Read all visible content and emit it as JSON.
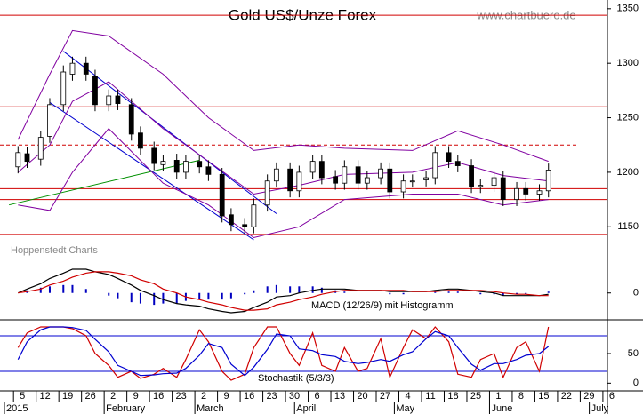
{
  "chart_data": [
    {
      "type": "candlestick",
      "title": "Gold US$/Unze Forex",
      "source": "www.chartbuero.de",
      "credit": "Hoppenstedt Charts",
      "xlim": [
        "2015-01-01",
        "2015-07-07"
      ],
      "x": [
        "2015-01-06",
        "2015-01-08",
        "2015-01-13",
        "2015-01-15",
        "2015-01-20",
        "2015-01-22",
        "2015-01-27",
        "2015-01-29",
        "2015-02-03",
        "2015-02-05",
        "2015-02-10",
        "2015-02-12",
        "2015-02-17",
        "2015-02-19",
        "2015-02-24",
        "2015-02-26",
        "2015-03-03",
        "2015-03-05",
        "2015-03-10",
        "2015-03-12",
        "2015-03-17",
        "2015-03-19",
        "2015-03-24",
        "2015-03-26",
        "2015-03-31",
        "2015-04-02",
        "2015-04-07",
        "2015-04-09",
        "2015-04-14",
        "2015-04-16",
        "2015-04-21",
        "2015-04-23",
        "2015-04-28",
        "2015-04-30",
        "2015-05-05",
        "2015-05-07",
        "2015-05-12",
        "2015-05-14",
        "2015-05-19",
        "2015-05-21",
        "2015-05-26",
        "2015-05-28",
        "2015-06-02",
        "2015-06-04",
        "2015-06-09",
        "2015-06-11",
        "2015-06-16",
        "2015-06-18"
      ],
      "open": [
        1205,
        1217,
        1212,
        1233,
        1262,
        1290,
        1300,
        1288,
        1262,
        1270,
        1262,
        1236,
        1222,
        1207,
        1211,
        1200,
        1210,
        1205,
        1198,
        1161,
        1152,
        1150,
        1170,
        1192,
        1203,
        1183,
        1200,
        1210,
        1196,
        1190,
        1205,
        1190,
        1195,
        1203,
        1182,
        1192,
        1193,
        1195,
        1218,
        1210,
        1206,
        1187,
        1188,
        1195,
        1175,
        1185,
        1180,
        1183
      ],
      "high": [
        1224,
        1223,
        1238,
        1268,
        1298,
        1306,
        1306,
        1294,
        1276,
        1276,
        1268,
        1242,
        1228,
        1216,
        1217,
        1216,
        1216,
        1211,
        1204,
        1167,
        1158,
        1176,
        1198,
        1209,
        1209,
        1206,
        1216,
        1216,
        1202,
        1211,
        1211,
        1201,
        1209,
        1209,
        1198,
        1198,
        1201,
        1224,
        1224,
        1216,
        1212,
        1194,
        1201,
        1201,
        1191,
        1191,
        1189,
        1208
      ],
      "low": [
        1199,
        1204,
        1206,
        1227,
        1256,
        1284,
        1284,
        1256,
        1256,
        1257,
        1229,
        1216,
        1202,
        1201,
        1194,
        1194,
        1199,
        1192,
        1154,
        1146,
        1144,
        1144,
        1164,
        1186,
        1177,
        1177,
        1194,
        1189,
        1184,
        1184,
        1184,
        1184,
        1189,
        1176,
        1176,
        1186,
        1187,
        1189,
        1204,
        1200,
        1181,
        1181,
        1182,
        1169,
        1169,
        1174,
        1174,
        1177
      ],
      "close": [
        1218,
        1210,
        1232,
        1262,
        1292,
        1300,
        1290,
        1262,
        1270,
        1263,
        1235,
        1222,
        1208,
        1210,
        1200,
        1210,
        1205,
        1198,
        1160,
        1152,
        1150,
        1170,
        1192,
        1203,
        1183,
        1200,
        1210,
        1195,
        1190,
        1205,
        1190,
        1195,
        1203,
        1182,
        1192,
        1192,
        1195,
        1218,
        1210,
        1206,
        1187,
        1188,
        1195,
        1175,
        1185,
        1180,
        1183,
        1202
      ],
      "band_x": [
        "2015-01-06",
        "2015-01-15",
        "2015-01-22",
        "2015-02-03",
        "2015-02-19",
        "2015-03-05",
        "2015-03-19",
        "2015-04-02",
        "2015-04-16",
        "2015-05-07",
        "2015-05-21",
        "2015-06-04",
        "2015-06-18"
      ],
      "bands": [
        {
          "color": "#8000a0",
          "values": [
            1230,
            1290,
            1330,
            1325,
            1290,
            1250,
            1220,
            1225,
            1222,
            1220,
            1238,
            1225,
            1210
          ]
        },
        {
          "color": "#8000a0",
          "values": [
            1200,
            1225,
            1265,
            1283,
            1240,
            1210,
            1180,
            1188,
            1198,
            1200,
            1209,
            1197,
            1192
          ]
        },
        {
          "color": "#8000a0",
          "values": [
            1170,
            1165,
            1200,
            1240,
            1190,
            1170,
            1140,
            1150,
            1175,
            1180,
            1180,
            1170,
            1175
          ]
        }
      ],
      "levels": [
        {
          "value": 1344,
          "color": "#d00000",
          "dashed": false
        },
        {
          "value": 1260,
          "color": "#d00000",
          "dashed": false
        },
        {
          "value": 1225,
          "color": "#d00000",
          "dashed": true
        },
        {
          "value": 1185,
          "color": "#d00000",
          "dashed": false
        },
        {
          "value": 1175,
          "color": "#d00000",
          "dashed": false
        },
        {
          "value": 1143,
          "color": "#d00000",
          "dashed": false
        }
      ],
      "trendlines": [
        {
          "color": "#0000d0",
          "x": [
            "2015-01-20",
            "2015-03-26"
          ],
          "values": [
            1311,
            1162
          ]
        },
        {
          "color": "#0000d0",
          "x": [
            "2015-01-15",
            "2015-03-19"
          ],
          "values": [
            1264,
            1138
          ]
        },
        {
          "color": "#009000",
          "x": [
            "2015-01-02",
            "2015-03-03"
          ],
          "values": [
            1170,
            1211
          ]
        }
      ],
      "ylim": [
        1138,
        1358
      ],
      "yticks": [
        1150,
        1200,
        1250,
        1300,
        1350
      ]
    },
    {
      "type": "macd",
      "label": "MACD (12/26/9) mit Histogramm",
      "series": [
        {
          "name": "MACD",
          "color": "#000000",
          "values": [
            0,
            3,
            7,
            11,
            15,
            18,
            18,
            16,
            14,
            11,
            6,
            2,
            -2,
            -5,
            -8,
            -9,
            -10,
            -12,
            -14,
            -15,
            -14,
            -11,
            -7,
            -3,
            -2,
            0,
            2,
            3,
            3,
            3,
            2,
            2,
            2,
            1,
            1,
            1,
            1,
            2,
            3,
            3,
            2,
            1,
            0,
            -2,
            -2,
            -2,
            -2,
            -1
          ]
        },
        {
          "name": "Signal",
          "color": "#d00000",
          "values": [
            0,
            1,
            3,
            6,
            9,
            12,
            15,
            16,
            16,
            15,
            13,
            10,
            7,
            3,
            0,
            -3,
            -5,
            -7,
            -9,
            -11,
            -13,
            -13,
            -12,
            -9,
            -7,
            -5,
            -3,
            -1,
            1,
            2,
            2,
            2,
            2,
            2,
            2,
            1,
            1,
            1,
            2,
            2,
            2,
            2,
            1,
            0,
            -1,
            -1,
            -2,
            -2
          ]
        }
      ],
      "histogram": {
        "color": "#0000c0",
        "values": [
          0,
          2,
          4,
          5,
          6,
          6,
          3,
          0,
          -2,
          -4,
          -7,
          -8,
          -9,
          -8,
          -8,
          -6,
          -5,
          -5,
          -5,
          -4,
          -1,
          2,
          5,
          6,
          5,
          5,
          5,
          4,
          2,
          1,
          0,
          0,
          0,
          -1,
          -1,
          0,
          0,
          1,
          1,
          1,
          0,
          -1,
          -1,
          -2,
          -1,
          -1,
          0,
          1
        ]
      },
      "ylim": [
        -17,
        20
      ],
      "yticks": [
        0
      ]
    },
    {
      "type": "stochastic",
      "label": "Stochastik (5/3/3)",
      "series": [
        {
          "name": "%K",
          "color": "#d00000",
          "values": [
            60,
            85,
            95,
            95,
            95,
            92,
            80,
            50,
            30,
            10,
            20,
            8,
            15,
            25,
            10,
            40,
            90,
            70,
            20,
            5,
            15,
            60,
            95,
            95,
            50,
            30,
            85,
            30,
            20,
            60,
            20,
            25,
            75,
            10,
            60,
            90,
            75,
            95,
            70,
            15,
            10,
            40,
            50,
            10,
            60,
            70,
            20,
            95
          ]
        },
        {
          "name": "%D",
          "color": "#0000d0",
          "values": [
            40,
            70,
            90,
            95,
            95,
            94,
            89,
            74,
            53,
            30,
            20,
            13,
            14,
            16,
            17,
            25,
            47,
            67,
            60,
            32,
            13,
            27,
            57,
            83,
            80,
            58,
            55,
            48,
            45,
            37,
            33,
            35,
            40,
            37,
            48,
            53,
            75,
            87,
            80,
            60,
            32,
            22,
            33,
            33,
            40,
            47,
            50,
            62
          ]
        }
      ],
      "levels": [
        {
          "value": 20,
          "color": "#0000d0"
        },
        {
          "value": 80,
          "color": "#0000d0"
        }
      ],
      "ylim": [
        -13,
        107
      ],
      "yticks": [
        0,
        50
      ],
      "xticks": [
        {
          "value": "2015-01-05",
          "label": "5"
        },
        {
          "value": "2015-01-12",
          "label": "12"
        },
        {
          "value": "2015-01-19",
          "label": "19"
        },
        {
          "value": "2015-01-26",
          "label": "26"
        },
        {
          "value": "2015-02-02",
          "label": "2"
        },
        {
          "value": "2015-02-09",
          "label": "9"
        },
        {
          "value": "2015-02-16",
          "label": "16"
        },
        {
          "value": "2015-02-23",
          "label": "23"
        },
        {
          "value": "2015-03-02",
          "label": "2"
        },
        {
          "value": "2015-03-09",
          "label": "9"
        },
        {
          "value": "2015-03-16",
          "label": "16"
        },
        {
          "value": "2015-03-23",
          "label": "23"
        },
        {
          "value": "2015-03-30",
          "label": "30"
        },
        {
          "value": "2015-04-06",
          "label": "6"
        },
        {
          "value": "2015-04-13",
          "label": "13"
        },
        {
          "value": "2015-04-20",
          "label": "20"
        },
        {
          "value": "2015-04-27",
          "label": "27"
        },
        {
          "value": "2015-05-04",
          "label": "4"
        },
        {
          "value": "2015-05-11",
          "label": "11"
        },
        {
          "value": "2015-05-18",
          "label": "18"
        },
        {
          "value": "2015-05-25",
          "label": "25"
        },
        {
          "value": "2015-06-01",
          "label": "1"
        },
        {
          "value": "2015-06-08",
          "label": "8"
        },
        {
          "value": "2015-06-15",
          "label": "15"
        },
        {
          "value": "2015-06-22",
          "label": "22"
        },
        {
          "value": "2015-06-29",
          "label": "29"
        },
        {
          "value": "2015-07-06",
          "label": "6"
        }
      ],
      "month_ticks": [
        {
          "value": "2015-01-01",
          "label": "2015"
        },
        {
          "value": "2015-02-02",
          "label": "February"
        },
        {
          "value": "2015-03-02",
          "label": "March"
        },
        {
          "value": "2015-04-01",
          "label": "April"
        },
        {
          "value": "2015-05-01",
          "label": "May"
        },
        {
          "value": "2015-06-01",
          "label": "June"
        },
        {
          "value": "2015-07-01",
          "label": "July"
        }
      ]
    }
  ]
}
